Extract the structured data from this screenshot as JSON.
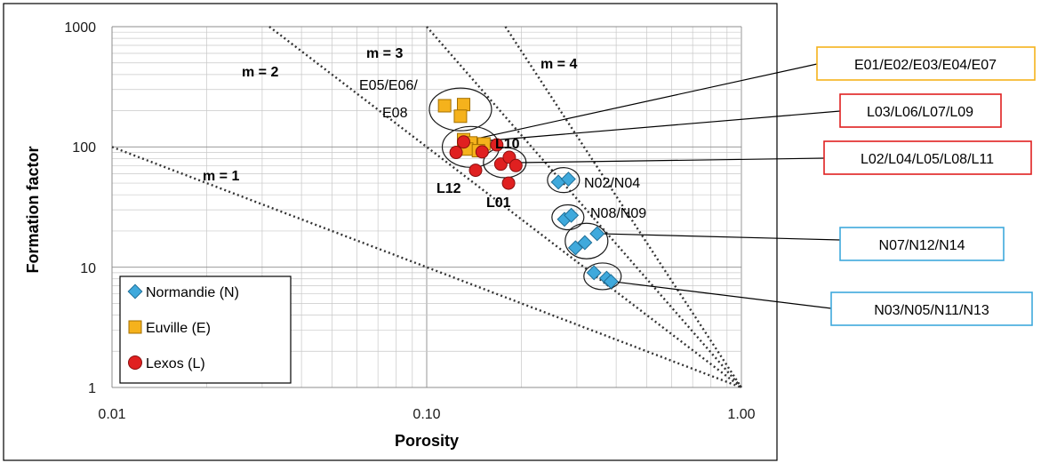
{
  "chart_data": {
    "type": "scatter",
    "xlabel": "Porosity",
    "ylabel": "Formation factor",
    "x_scale": "log",
    "y_scale": "log",
    "xlim": [
      0.01,
      1.0
    ],
    "ylim": [
      1,
      1000
    ],
    "x_ticks": [
      "0.01",
      "0.10",
      "1.00"
    ],
    "y_ticks": [
      "1",
      "10",
      "100",
      "1000"
    ],
    "grid": true,
    "legend_position": "bottom-left",
    "series": [
      {
        "name": "Normandie (N)",
        "marker": "diamond",
        "color": "#3fa9dc",
        "points": [
          {
            "x": 0.262,
            "y": 51
          },
          {
            "x": 0.282,
            "y": 54
          },
          {
            "x": 0.274,
            "y": 25
          },
          {
            "x": 0.288,
            "y": 27
          },
          {
            "x": 0.297,
            "y": 14.5
          },
          {
            "x": 0.318,
            "y": 16
          },
          {
            "x": 0.348,
            "y": 19
          },
          {
            "x": 0.34,
            "y": 9
          },
          {
            "x": 0.373,
            "y": 8.1
          },
          {
            "x": 0.385,
            "y": 7.6
          }
        ]
      },
      {
        "name": "Euville (E)",
        "marker": "square",
        "color": "#f5b21c",
        "points": [
          {
            "x": 0.114,
            "y": 220
          },
          {
            "x": 0.131,
            "y": 225
          },
          {
            "x": 0.128,
            "y": 180
          },
          {
            "x": 0.131,
            "y": 115
          },
          {
            "x": 0.138,
            "y": 108
          },
          {
            "x": 0.152,
            "y": 106
          },
          {
            "x": 0.134,
            "y": 96
          },
          {
            "x": 0.146,
            "y": 93
          }
        ]
      },
      {
        "name": "Lexos (L)",
        "marker": "circle",
        "color": "#e02020",
        "points": [
          {
            "x": 0.124,
            "y": 90
          },
          {
            "x": 0.131,
            "y": 110
          },
          {
            "x": 0.15,
            "y": 91
          },
          {
            "x": 0.143,
            "y": 64
          },
          {
            "x": 0.167,
            "y": 104
          },
          {
            "x": 0.172,
            "y": 72
          },
          {
            "x": 0.183,
            "y": 82
          },
          {
            "x": 0.192,
            "y": 70
          },
          {
            "x": 0.182,
            "y": 50
          }
        ]
      }
    ],
    "reference_lines": [
      {
        "label": "m = 1",
        "exponent": 1
      },
      {
        "label": "m = 2",
        "exponent": 2
      },
      {
        "label": "m = 3",
        "exponent": 3
      },
      {
        "label": "m = 4",
        "exponent": 4
      }
    ],
    "annotations": [
      "E05/E06/",
      "E08",
      "L10",
      "L12",
      "L01",
      "N02/N04",
      "N08/N09"
    ],
    "callouts": [
      {
        "label": "E01/E02/E03/E04/E07",
        "color": "#f5b21c"
      },
      {
        "label": "L03/L06/L07/L09",
        "color": "#e02020"
      },
      {
        "label": "L02/L04/L05/L08/L11",
        "color": "#e02020"
      },
      {
        "label": "N07/N12/N14",
        "color": "#3fa9dc"
      },
      {
        "label": "N03/N05/N11/N13",
        "color": "#3fa9dc"
      }
    ]
  }
}
